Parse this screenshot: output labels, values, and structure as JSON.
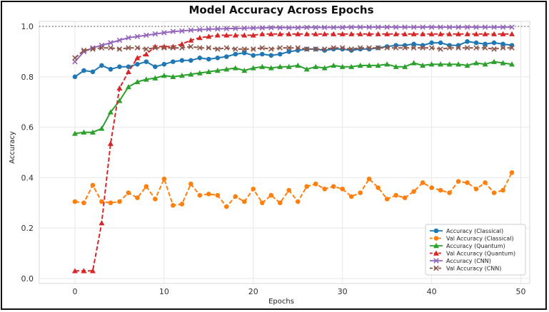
{
  "chart_data": {
    "type": "line",
    "title": "Model Accuracy Across Epochs",
    "xlabel": "Epochs",
    "ylabel": "Accuracy",
    "xlim": [
      -4,
      51
    ],
    "ylim": [
      -0.02,
      1.02
    ],
    "xticks": [
      0,
      10,
      20,
      30,
      40,
      50
    ],
    "yticks": [
      0.0,
      0.2,
      0.4,
      0.6,
      0.8,
      1.0
    ],
    "grid": true,
    "legend_position": "lower-right",
    "reference_line": {
      "y": 1.0,
      "style": "dotted"
    },
    "series": [
      {
        "name": "Accuracy (Classical)",
        "color": "#1f77b4",
        "marker": "circle",
        "dash": "solid",
        "values": [
          0.8,
          0.825,
          0.82,
          0.845,
          0.83,
          0.84,
          0.84,
          0.85,
          0.86,
          0.84,
          0.85,
          0.86,
          0.865,
          0.865,
          0.875,
          0.87,
          0.875,
          0.88,
          0.89,
          0.895,
          0.885,
          0.89,
          0.885,
          0.89,
          0.9,
          0.905,
          0.91,
          0.91,
          0.905,
          0.91,
          0.91,
          0.905,
          0.91,
          0.91,
          0.915,
          0.92,
          0.925,
          0.925,
          0.93,
          0.925,
          0.935,
          0.935,
          0.925,
          0.925,
          0.94,
          0.935,
          0.93,
          0.935,
          0.93,
          0.925
        ]
      },
      {
        "name": "Val Accuracy (Classical)",
        "color": "#ff7f0e",
        "marker": "circle",
        "dash": "dashed",
        "values": [
          0.305,
          0.3,
          0.37,
          0.305,
          0.3,
          0.305,
          0.34,
          0.32,
          0.365,
          0.315,
          0.395,
          0.29,
          0.295,
          0.375,
          0.33,
          0.335,
          0.33,
          0.285,
          0.325,
          0.305,
          0.355,
          0.3,
          0.33,
          0.3,
          0.35,
          0.305,
          0.365,
          0.375,
          0.355,
          0.365,
          0.355,
          0.325,
          0.34,
          0.395,
          0.36,
          0.315,
          0.33,
          0.32,
          0.345,
          0.38,
          0.36,
          0.35,
          0.34,
          0.385,
          0.38,
          0.355,
          0.38,
          0.34,
          0.35,
          0.42
        ]
      },
      {
        "name": "Accuracy (Quantum)",
        "color": "#2ca02c",
        "marker": "triangle",
        "dash": "solid",
        "values": [
          0.575,
          0.58,
          0.58,
          0.595,
          0.66,
          0.705,
          0.76,
          0.78,
          0.79,
          0.795,
          0.805,
          0.8,
          0.805,
          0.81,
          0.815,
          0.82,
          0.825,
          0.83,
          0.835,
          0.825,
          0.835,
          0.84,
          0.835,
          0.84,
          0.84,
          0.845,
          0.83,
          0.84,
          0.835,
          0.845,
          0.84,
          0.84,
          0.845,
          0.845,
          0.845,
          0.85,
          0.84,
          0.84,
          0.855,
          0.845,
          0.85,
          0.85,
          0.85,
          0.85,
          0.845,
          0.855,
          0.85,
          0.86,
          0.855,
          0.85
        ]
      },
      {
        "name": "Val Accuracy (Quantum)",
        "color": "#d62728",
        "marker": "triangle",
        "dash": "dashed",
        "values": [
          0.03,
          0.03,
          0.03,
          0.22,
          0.535,
          0.755,
          0.82,
          0.875,
          0.89,
          0.92,
          0.92,
          0.92,
          0.93,
          0.945,
          0.955,
          0.96,
          0.965,
          0.965,
          0.965,
          0.965,
          0.965,
          0.97,
          0.97,
          0.97,
          0.97,
          0.97,
          0.97,
          0.97,
          0.97,
          0.97,
          0.97,
          0.97,
          0.97,
          0.97,
          0.97,
          0.97,
          0.97,
          0.97,
          0.97,
          0.97,
          0.97,
          0.97,
          0.97,
          0.97,
          0.97,
          0.97,
          0.97,
          0.97,
          0.97,
          0.97
        ]
      },
      {
        "name": "Accuracy (CNN)",
        "color": "#9467bd",
        "marker": "x",
        "dash": "solid",
        "values": [
          0.86,
          0.9,
          0.915,
          0.925,
          0.935,
          0.945,
          0.955,
          0.96,
          0.965,
          0.97,
          0.975,
          0.98,
          0.982,
          0.985,
          0.987,
          0.989,
          0.99,
          0.991,
          0.992,
          0.993,
          0.994,
          0.994,
          0.995,
          0.995,
          0.995,
          0.995,
          0.996,
          0.996,
          0.996,
          0.996,
          0.996,
          0.997,
          0.997,
          0.997,
          0.997,
          0.997,
          0.997,
          0.997,
          0.997,
          0.997,
          0.997,
          0.997,
          0.997,
          0.997,
          0.997,
          0.997,
          0.997,
          0.997,
          0.997,
          0.997
        ]
      },
      {
        "name": "Val Accuracy (CNN)",
        "color": "#8c564b",
        "marker": "x",
        "dash": "dashed",
        "values": [
          0.875,
          0.905,
          0.91,
          0.915,
          0.915,
          0.91,
          0.915,
          0.915,
          0.91,
          0.915,
          0.915,
          0.915,
          0.915,
          0.92,
          0.915,
          0.915,
          0.91,
          0.915,
          0.91,
          0.91,
          0.91,
          0.915,
          0.91,
          0.915,
          0.915,
          0.915,
          0.91,
          0.91,
          0.91,
          0.915,
          0.915,
          0.91,
          0.915,
          0.915,
          0.915,
          0.915,
          0.915,
          0.915,
          0.915,
          0.915,
          0.915,
          0.91,
          0.915,
          0.915,
          0.915,
          0.915,
          0.915,
          0.91,
          0.915,
          0.915
        ]
      }
    ]
  }
}
